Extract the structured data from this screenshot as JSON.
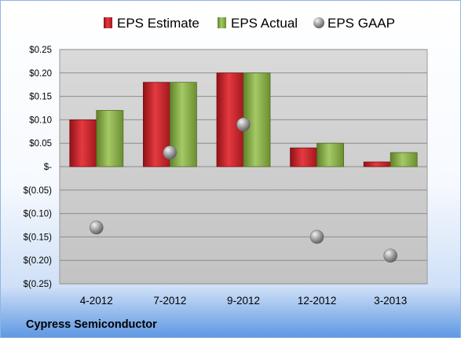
{
  "chart_data": {
    "type": "bar",
    "categories": [
      "4-2012",
      "7-2012",
      "9-2012",
      "12-2012",
      "3-2013"
    ],
    "series": [
      {
        "name": "EPS Estimate",
        "kind": "bar",
        "values": [
          0.1,
          0.18,
          0.2,
          0.04,
          0.01
        ],
        "color": "#c8262d"
      },
      {
        "name": "EPS Actual",
        "kind": "bar",
        "values": [
          0.12,
          0.18,
          0.2,
          0.05,
          0.03
        ],
        "color": "#82a844"
      },
      {
        "name": "EPS GAAP",
        "kind": "scatter",
        "values": [
          -0.13,
          0.03,
          0.09,
          -0.15,
          -0.19
        ],
        "color": "#a6a6a6"
      }
    ],
    "yticks": [
      "$0.25",
      "$0.20",
      "$0.15",
      "$0.10",
      "$0.05",
      "$-",
      "$(0.05)",
      "$(0.10)",
      "$(0.15)",
      "$(0.20)",
      "$(0.25)"
    ],
    "ylim": [
      -0.25,
      0.25
    ],
    "grid": true,
    "legend_position": "top",
    "company": "Cypress Semiconductor"
  }
}
